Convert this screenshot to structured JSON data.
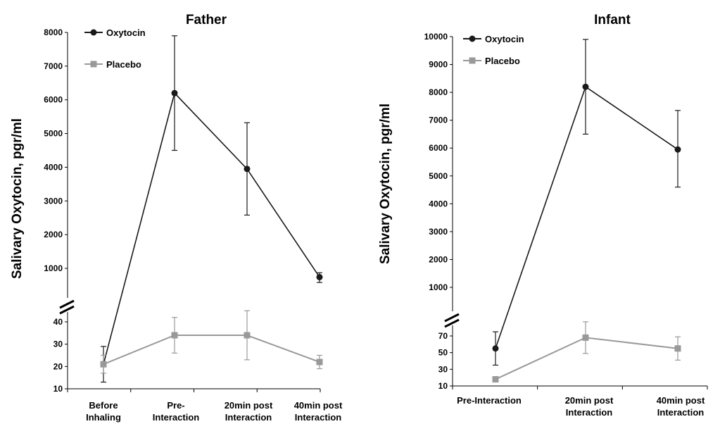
{
  "colors": {
    "oxytocin": "#1a1a1a",
    "placebo": "#999999",
    "axis": "#000000"
  },
  "chart_data": [
    {
      "type": "line",
      "title": "Father",
      "ylabel": "Salivary Oxytocin, pgr/ml",
      "xlabel": "",
      "categories": [
        "Before Inhaling",
        "Pre-Interaction",
        "20min post Interaction",
        "40min post Interaction"
      ],
      "category_lines": [
        [
          "Before",
          "Inhaling"
        ],
        [
          "Pre-",
          "Interaction"
        ],
        [
          "20min post",
          "Interaction"
        ],
        [
          "40min post",
          "Interaction"
        ]
      ],
      "broken_axis": true,
      "ylim_upper": [
        1000,
        8000
      ],
      "yticks_upper": [
        "1000",
        "2000",
        "3000",
        "4000",
        "5000",
        "6000",
        "7000",
        "8000"
      ],
      "ylim_lower": [
        10,
        40
      ],
      "yticks_lower": [
        "10",
        "20",
        "30",
        "40"
      ],
      "legend": {
        "position": "top-left",
        "entries": [
          "Oxytocin",
          "Placebo"
        ]
      },
      "series": [
        {
          "name": "Oxytocin",
          "marker": "circle",
          "points": [
            {
              "segment": "lower",
              "value": 21,
              "err_low": 13,
              "err_high": 29
            },
            {
              "segment": "upper",
              "value": 6200,
              "err_low": 4500,
              "err_high": 7900
            },
            {
              "segment": "upper",
              "value": 3950,
              "err_low": 2580,
              "err_high": 5320
            },
            {
              "segment": "upper",
              "value": 740,
              "err_low": 580,
              "err_high": 870
            }
          ]
        },
        {
          "name": "Placebo",
          "marker": "square",
          "points": [
            {
              "segment": "lower",
              "value": 21,
              "err_low": 17,
              "err_high": 25
            },
            {
              "segment": "lower",
              "value": 34,
              "err_low": 26,
              "err_high": 42
            },
            {
              "segment": "lower",
              "value": 34,
              "err_low": 23,
              "err_high": 45
            },
            {
              "segment": "lower",
              "value": 22,
              "err_low": 19,
              "err_high": 25
            }
          ]
        }
      ]
    },
    {
      "type": "line",
      "title": "Infant",
      "ylabel": "Salivary Oxytocin, pgr/ml",
      "xlabel": "",
      "categories": [
        "Pre-Interaction",
        "20min post Interaction",
        "40min post Interaction"
      ],
      "category_lines": [
        [
          "Pre-Interaction"
        ],
        [
          "20min post",
          "Interaction"
        ],
        [
          "40min post",
          "Interaction"
        ]
      ],
      "broken_axis": true,
      "ylim_upper": [
        1000,
        10000
      ],
      "yticks_upper": [
        "1000",
        "2000",
        "3000",
        "4000",
        "5000",
        "6000",
        "7000",
        "8000",
        "9000",
        "10000"
      ],
      "ylim_lower": [
        10,
        70
      ],
      "yticks_lower": [
        "10",
        "30",
        "50",
        "70"
      ],
      "legend": {
        "position": "top-left",
        "entries": [
          "Oxytocin",
          "Placebo"
        ]
      },
      "series": [
        {
          "name": "Oxytocin",
          "marker": "circle",
          "points": [
            {
              "segment": "lower",
              "value": 55,
              "err_low": 35,
              "err_high": 75
            },
            {
              "segment": "upper",
              "value": 8200,
              "err_low": 6500,
              "err_high": 9900
            },
            {
              "segment": "upper",
              "value": 5950,
              "err_low": 4600,
              "err_high": 7350
            }
          ]
        },
        {
          "name": "Placebo",
          "marker": "square",
          "points": [
            {
              "segment": "lower",
              "value": 18,
              "err_low": 16,
              "err_high": 20
            },
            {
              "segment": "lower",
              "value": 68,
              "err_low": 49,
              "err_high": 87
            },
            {
              "segment": "lower",
              "value": 55,
              "err_low": 41,
              "err_high": 69
            }
          ]
        }
      ]
    }
  ]
}
